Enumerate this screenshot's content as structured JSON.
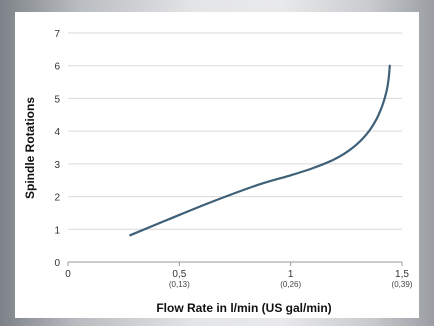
{
  "chart_data": {
    "type": "line",
    "title": "",
    "xlabel": "Flow Rate in l/min (US gal/min)",
    "ylabel": "Spindle Rotations",
    "xlim": [
      0,
      1.5
    ],
    "ylim": [
      0,
      7
    ],
    "grid": true,
    "x_ticks": [
      {
        "value": 0,
        "label": "0",
        "sublabel": ""
      },
      {
        "value": 0.5,
        "label": "0,5",
        "sublabel": "(0,13)"
      },
      {
        "value": 1,
        "label": "1",
        "sublabel": "(0,26)"
      },
      {
        "value": 1.5,
        "label": "1,5",
        "sublabel": "(0,39)"
      }
    ],
    "y_ticks": [
      {
        "value": 0,
        "label": "0"
      },
      {
        "value": 1,
        "label": "1"
      },
      {
        "value": 2,
        "label": "2"
      },
      {
        "value": 3,
        "label": "3"
      },
      {
        "value": 4,
        "label": "4"
      },
      {
        "value": 5,
        "label": "5"
      },
      {
        "value": 6,
        "label": "6"
      },
      {
        "value": 7,
        "label": "7"
      }
    ],
    "series": [
      {
        "color": "#3f6079",
        "x": [
          0.28,
          0.45,
          0.65,
          0.85,
          1.0,
          1.1,
          1.2,
          1.28,
          1.34,
          1.38,
          1.41,
          1.43,
          1.44,
          1.445
        ],
        "y": [
          0.82,
          1.3,
          1.85,
          2.35,
          2.65,
          2.87,
          3.15,
          3.5,
          3.9,
          4.3,
          4.75,
          5.2,
          5.6,
          6.0
        ]
      }
    ]
  }
}
